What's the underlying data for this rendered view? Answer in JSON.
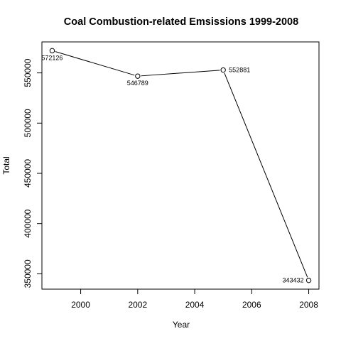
{
  "chart_data": {
    "type": "line",
    "title": "Coal Combustion-related Emsissions 1999-2008",
    "xlabel": "Year",
    "ylabel": "Total",
    "x": [
      1999,
      2002,
      2005,
      2008
    ],
    "series": [
      {
        "values": [
          572126,
          546789,
          552881,
          343432
        ],
        "data_labels": [
          "572126",
          "546789",
          "552881",
          "343432"
        ],
        "marker": "open-circle",
        "color": "#000000"
      }
    ],
    "xlim": [
      1998.64,
      2008.36
    ],
    "ylim": [
      334715,
      580843
    ],
    "x_ticks": [
      2000,
      2002,
      2004,
      2006,
      2008
    ],
    "x_tick_labels": [
      "2000",
      "2002",
      "2004",
      "2006",
      "2008"
    ],
    "y_ticks": [
      350000,
      400000,
      450000,
      500000,
      550000
    ],
    "y_tick_labels": [
      "350000",
      "400000",
      "450000",
      "500000",
      "550000"
    ],
    "grid": false,
    "legend": "none"
  }
}
